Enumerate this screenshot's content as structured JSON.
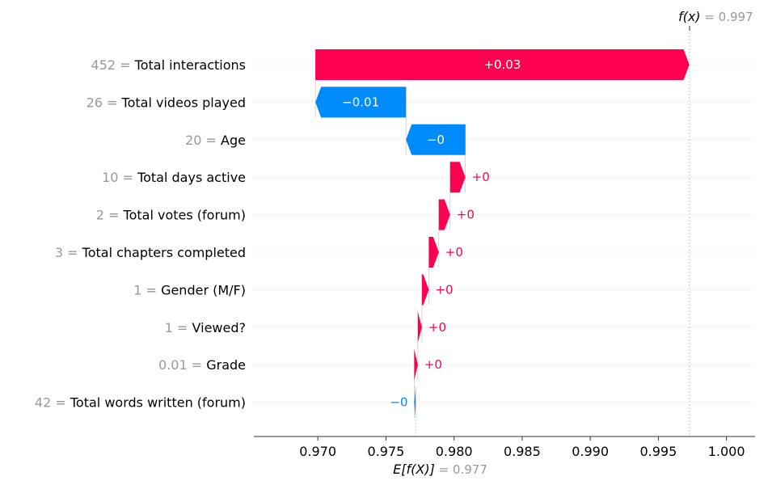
{
  "chart_data": {
    "type": "waterfall",
    "colors": {
      "positive": "#ff0051",
      "negative": "#008bfb",
      "axis": "#333333",
      "row_grid": "#cccccc",
      "value_text": "#999999"
    },
    "base_value": 0.97718,
    "base_label": "E[f(X)]",
    "base_value_text": "0.977",
    "output_value": 0.99729,
    "output_label": "f(x)",
    "output_value_text": "0.997",
    "xlim": [
      0.9653,
      1.0021
    ],
    "xticks": [
      0.97,
      0.975,
      0.98,
      0.985,
      0.99,
      0.995,
      1.0
    ],
    "xtick_labels": [
      "0.970",
      "0.975",
      "0.980",
      "0.985",
      "0.990",
      "0.995",
      "1.000"
    ],
    "features": [
      {
        "value": "452",
        "name": "Total interactions",
        "contribution": 0.02745,
        "label": "+0.03"
      },
      {
        "value": "26",
        "name": "Total videos played",
        "contribution": -0.00665,
        "label": "−0.01"
      },
      {
        "value": "20",
        "name": "Age",
        "contribution": -0.00436,
        "label": "−0"
      },
      {
        "value": "10",
        "name": "Total days active",
        "contribution": 0.00112,
        "label": "+0"
      },
      {
        "value": "2",
        "name": "Total votes (forum)",
        "contribution": 0.00083,
        "label": "+0"
      },
      {
        "value": "3",
        "name": "Total chapters completed",
        "contribution": 0.00073,
        "label": "+0"
      },
      {
        "value": "1",
        "name": "Gender (M/F)",
        "contribution": 0.00051,
        "label": "+0"
      },
      {
        "value": "1",
        "name": "Viewed?",
        "contribution": 0.0003,
        "label": "+0"
      },
      {
        "value": "0.01",
        "name": "Grade",
        "contribution": 0.00026,
        "label": "+0"
      },
      {
        "value": "42",
        "name": "Total words written (forum)",
        "contribution": -0.0001,
        "label": "−0"
      }
    ]
  }
}
